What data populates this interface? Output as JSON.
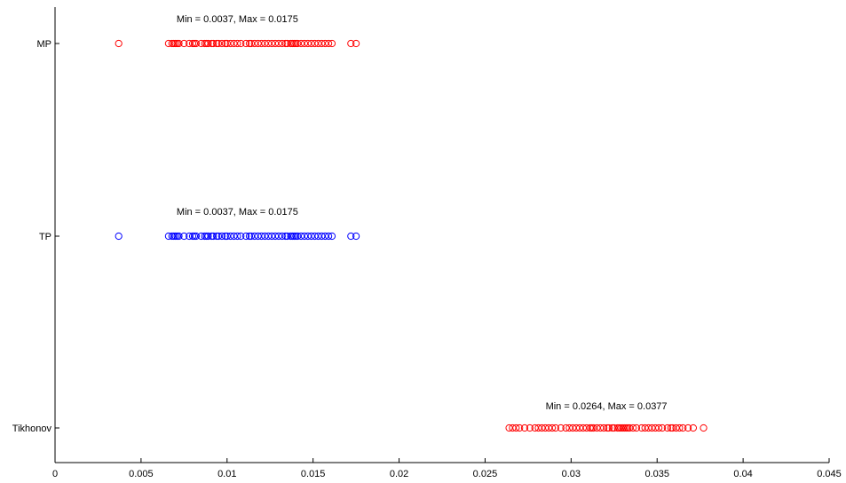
{
  "chart_data": {
    "type": "scatter",
    "title": "",
    "xlabel": "",
    "ylabel": "",
    "xlim": [
      0,
      0.045
    ],
    "x_ticks": [
      0,
      0.005,
      0.01,
      0.015,
      0.02,
      0.025,
      0.03,
      0.035,
      0.04,
      0.045
    ],
    "x_tick_labels": [
      "0",
      "0.005",
      "0.01",
      "0.015",
      "0.02",
      "0.025",
      "0.03",
      "0.035",
      "0.04",
      "0.045"
    ],
    "grid": false,
    "marker": "open-circle",
    "series": [
      {
        "category": "MP",
        "color": "#ff0000",
        "annotation": "Min = 0.0037, Max = 0.0175",
        "values": [
          0.0037,
          0.0066,
          0.0068,
          0.0069,
          0.007,
          0.0071,
          0.0072,
          0.0075,
          0.0078,
          0.008,
          0.0081,
          0.0082,
          0.0085,
          0.0087,
          0.0088,
          0.0089,
          0.0091,
          0.0092,
          0.0094,
          0.0095,
          0.0097,
          0.0099,
          0.01,
          0.0102,
          0.0104,
          0.0106,
          0.0108,
          0.0111,
          0.0113,
          0.0114,
          0.0116,
          0.0118,
          0.012,
          0.0122,
          0.0124,
          0.0126,
          0.0128,
          0.013,
          0.0132,
          0.0134,
          0.0135,
          0.0137,
          0.0138,
          0.0139,
          0.014,
          0.0141,
          0.0143,
          0.0145,
          0.0147,
          0.0149,
          0.0151,
          0.0153,
          0.0155,
          0.0157,
          0.0159,
          0.0161,
          0.0172,
          0.0175
        ]
      },
      {
        "category": "TP",
        "color": "#0000ff",
        "annotation": "Min = 0.0037, Max = 0.0175",
        "values": [
          0.0037,
          0.0066,
          0.0068,
          0.0069,
          0.007,
          0.0071,
          0.0072,
          0.0075,
          0.0078,
          0.008,
          0.0081,
          0.0082,
          0.0085,
          0.0087,
          0.0088,
          0.0089,
          0.0091,
          0.0092,
          0.0094,
          0.0095,
          0.0097,
          0.0099,
          0.01,
          0.0102,
          0.0104,
          0.0106,
          0.0108,
          0.0111,
          0.0113,
          0.0114,
          0.0116,
          0.0118,
          0.012,
          0.0122,
          0.0124,
          0.0126,
          0.0128,
          0.013,
          0.0132,
          0.0134,
          0.0135,
          0.0137,
          0.0138,
          0.0139,
          0.014,
          0.0141,
          0.0143,
          0.0145,
          0.0147,
          0.0149,
          0.0151,
          0.0153,
          0.0155,
          0.0157,
          0.0159,
          0.0161,
          0.0172,
          0.0175
        ]
      },
      {
        "category": "Tikhonov",
        "color": "#ff0000",
        "annotation": "Min = 0.0264, Max = 0.0377",
        "values": [
          0.0264,
          0.0266,
          0.0268,
          0.027,
          0.0273,
          0.0276,
          0.0279,
          0.0281,
          0.0283,
          0.0285,
          0.0287,
          0.0289,
          0.0291,
          0.0294,
          0.0297,
          0.0299,
          0.0301,
          0.0303,
          0.0305,
          0.0307,
          0.0309,
          0.0311,
          0.0312,
          0.0313,
          0.0315,
          0.0317,
          0.0319,
          0.0321,
          0.0322,
          0.0324,
          0.0325,
          0.0327,
          0.0328,
          0.0329,
          0.033,
          0.0331,
          0.0332,
          0.0333,
          0.0334,
          0.0336,
          0.0338,
          0.0341,
          0.0343,
          0.0345,
          0.0347,
          0.0349,
          0.0351,
          0.0353,
          0.0356,
          0.0358,
          0.0359,
          0.0361,
          0.0363,
          0.0365,
          0.0368,
          0.0371,
          0.0377
        ]
      }
    ]
  }
}
